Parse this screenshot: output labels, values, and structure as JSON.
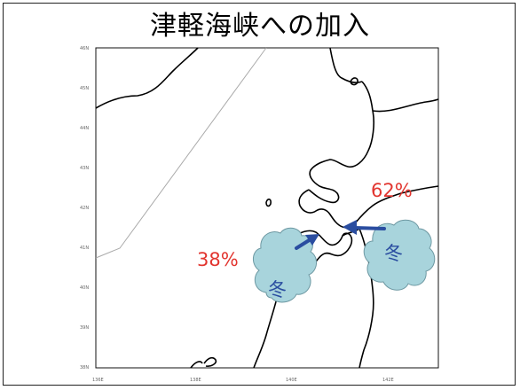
{
  "title": "津軽海峡への加入",
  "map": {
    "lat_ticks": [
      "46N",
      "45N",
      "44N",
      "43N",
      "42N",
      "41N",
      "40N",
      "39N",
      "38N"
    ],
    "lon_ticks": [
      "136E",
      "138E",
      "140E",
      "142E"
    ]
  },
  "annotations": {
    "west_percent": "38%",
    "east_percent": "62%",
    "west_cloud_label": "冬",
    "east_cloud_label": "冬"
  },
  "colors": {
    "percent_text": "#e2352f",
    "arrow": "#2a4da0",
    "cloud_fill": "#a8d4dc",
    "coastline": "#000000",
    "boundary_line": "#aaaaaa"
  }
}
